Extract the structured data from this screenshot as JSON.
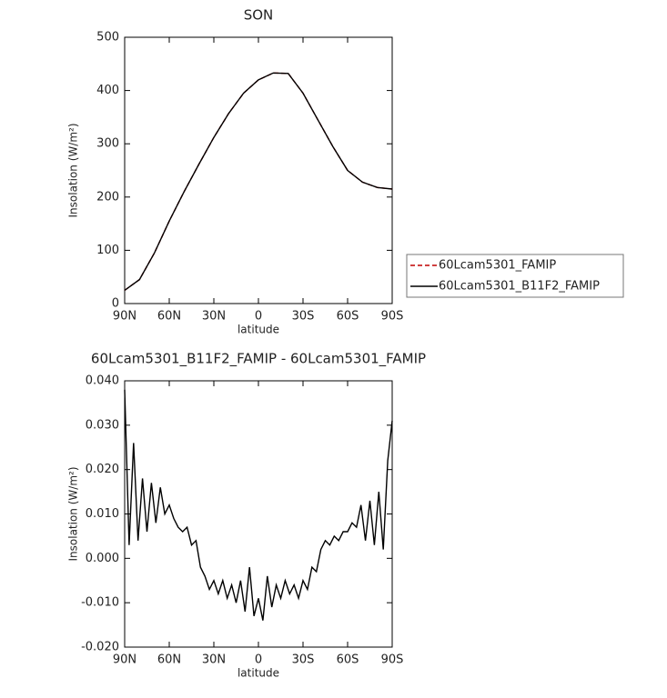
{
  "chart_data": [
    {
      "type": "line",
      "title": "SON",
      "xlabel": "latitude",
      "ylabel": "Insolation (W/m²)",
      "x": [
        90,
        80,
        70,
        60,
        50,
        40,
        30,
        20,
        10,
        0,
        -10,
        -20,
        -30,
        -40,
        -50,
        -60,
        -70,
        -80,
        -90
      ],
      "series": [
        {
          "name": "60Lcam5301_FAMIP",
          "color": "#c00000",
          "dash": true,
          "values": [
            25,
            45,
            95,
            155,
            210,
            262,
            312,
            357,
            395,
            420,
            433,
            432,
            395,
            345,
            295,
            250,
            228,
            218,
            215
          ]
        },
        {
          "name": "60Lcam5301_B11F2_FAMIP",
          "color": "#000000",
          "dash": false,
          "values": [
            25,
            45,
            95,
            155,
            210,
            262,
            312,
            357,
            395,
            420,
            433,
            432,
            395,
            345,
            295,
            250,
            228,
            218,
            215
          ]
        }
      ],
      "xlim": [
        90,
        -90
      ],
      "xticks": [
        {
          "value": 90,
          "label": "90N"
        },
        {
          "value": 60,
          "label": "60N"
        },
        {
          "value": 30,
          "label": "30N"
        },
        0,
        {
          "value": -30,
          "label": "30S"
        },
        {
          "value": -60,
          "label": "60S"
        },
        {
          "value": -90,
          "label": "90S"
        }
      ],
      "ylim": [
        0,
        500
      ],
      "yticks": [
        0,
        100,
        200,
        300,
        400,
        500
      ],
      "legend": "right"
    },
    {
      "type": "line",
      "title": "60Lcam5301_B11F2_FAMIP - 60Lcam5301_FAMIP",
      "xlabel": "latitude",
      "ylabel": "Insolation (W/m²)",
      "x": [
        90,
        87,
        84,
        81,
        78,
        75,
        72,
        69,
        66,
        63,
        60,
        57,
        54,
        51,
        48,
        45,
        42,
        39,
        36,
        33,
        30,
        27,
        24,
        21,
        18,
        15,
        12,
        9,
        6,
        3,
        0,
        -3,
        -6,
        -9,
        -12,
        -15,
        -18,
        -21,
        -24,
        -27,
        -30,
        -33,
        -36,
        -39,
        -42,
        -45,
        -48,
        -51,
        -54,
        -57,
        -60,
        -63,
        -66,
        -69,
        -72,
        -75,
        -78,
        -81,
        -84,
        -87,
        -90
      ],
      "series": [
        {
          "color": "#000000",
          "dash": false,
          "values": [
            0.038,
            0.003,
            0.026,
            0.004,
            0.018,
            0.006,
            0.017,
            0.008,
            0.016,
            0.01,
            0.012,
            0.009,
            0.007,
            0.006,
            0.007,
            0.003,
            0.004,
            -0.002,
            -0.004,
            -0.007,
            -0.005,
            -0.008,
            -0.005,
            -0.009,
            -0.006,
            -0.01,
            -0.005,
            -0.012,
            -0.002,
            -0.013,
            -0.009,
            -0.014,
            -0.004,
            -0.011,
            -0.006,
            -0.009,
            -0.005,
            -0.008,
            -0.006,
            -0.009,
            -0.005,
            -0.007,
            -0.002,
            -0.003,
            0.002,
            0.004,
            0.003,
            0.005,
            0.004,
            0.006,
            0.006,
            0.008,
            0.007,
            0.012,
            0.004,
            0.013,
            0.003,
            0.015,
            0.002,
            0.022,
            0.031
          ]
        }
      ],
      "xlim": [
        90,
        -90
      ],
      "xticks": [
        {
          "value": 90,
          "label": "90N"
        },
        {
          "value": 60,
          "label": "60N"
        },
        {
          "value": 30,
          "label": "30N"
        },
        0,
        {
          "value": -30,
          "label": "30S"
        },
        {
          "value": -60,
          "label": "60S"
        },
        {
          "value": -90,
          "label": "90S"
        }
      ],
      "ylim": [
        -0.02,
        0.04
      ],
      "yticks": [
        {
          "value": -0.02,
          "label": "-0.020"
        },
        {
          "value": -0.01,
          "label": "-0.010"
        },
        {
          "value": 0,
          "label": "0.000"
        },
        {
          "value": 0.01,
          "label": "0.010"
        },
        {
          "value": 0.02,
          "label": "0.020"
        },
        {
          "value": 0.03,
          "label": "0.030"
        },
        {
          "value": 0.04,
          "label": "0.040"
        }
      ]
    }
  ]
}
